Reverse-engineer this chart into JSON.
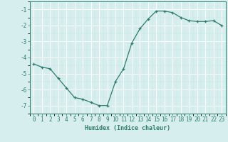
{
  "x": [
    0,
    1,
    2,
    3,
    4,
    5,
    6,
    7,
    8,
    9,
    10,
    11,
    12,
    13,
    14,
    15,
    16,
    17,
    18,
    19,
    20,
    21,
    22,
    23
  ],
  "y": [
    -4.4,
    -4.6,
    -4.7,
    -5.3,
    -5.9,
    -6.5,
    -6.6,
    -6.8,
    -7.0,
    -7.0,
    -5.5,
    -4.7,
    -3.1,
    -2.2,
    -1.6,
    -1.1,
    -1.1,
    -1.2,
    -1.5,
    -1.7,
    -1.75,
    -1.75,
    -1.7,
    -2.0
  ],
  "line_color": "#2e7d6e",
  "marker": "+",
  "marker_size": 3,
  "bg_color": "#d6eeee",
  "grid_major_color": "#ffffff",
  "grid_minor_color": "#c8e2e2",
  "xlabel": "Humidex (Indice chaleur)",
  "xlabel_fontsize": 6,
  "tick_fontsize": 5.5,
  "xlim": [
    -0.5,
    23.5
  ],
  "ylim": [
    -7.5,
    -0.5
  ],
  "yticks": [
    -7,
    -6,
    -5,
    -4,
    -3,
    -2,
    -1
  ],
  "xticks": [
    0,
    1,
    2,
    3,
    4,
    5,
    6,
    7,
    8,
    9,
    10,
    11,
    12,
    13,
    14,
    15,
    16,
    17,
    18,
    19,
    20,
    21,
    22,
    23
  ],
  "line_width": 0.9,
  "spine_color": "#2e7d6e"
}
